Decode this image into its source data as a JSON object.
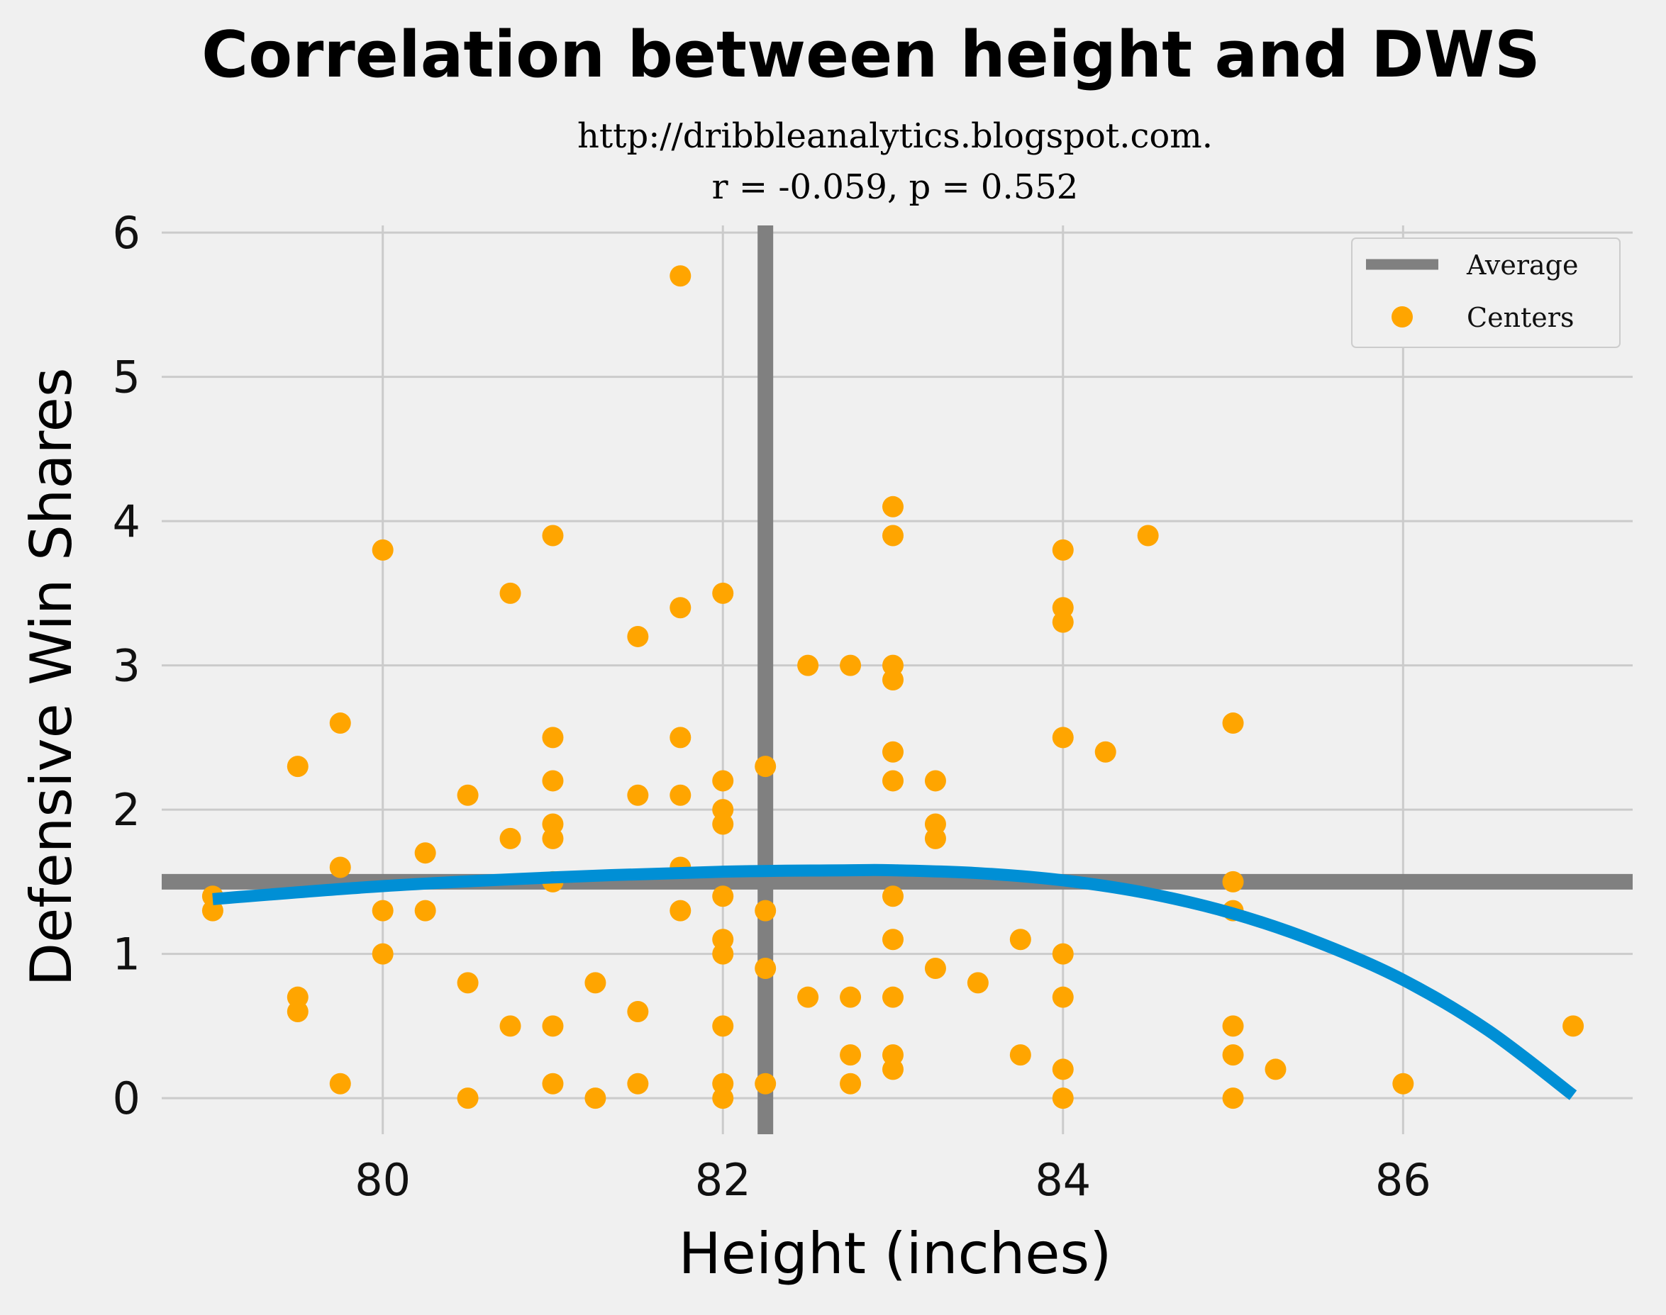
{
  "chart_data": {
    "type": "scatter",
    "title": "Correlation between height and DWS",
    "subtitle_lines": [
      "http://dribbleanalytics.blogspot.com.",
      "r = -0.059, p = 0.552"
    ],
    "xlabel": "Height (inches)",
    "ylabel": "Defensive Win Shares",
    "xlim": [
      78.7,
      87.35
    ],
    "ylim": [
      -0.25,
      6.05
    ],
    "xticks": [
      "80",
      "82",
      "84",
      "86"
    ],
    "yticks": [
      "0",
      "1",
      "2",
      "3",
      "4",
      "5",
      "6"
    ],
    "grid": true,
    "legend_position": "top-right",
    "average": {
      "name": "Average",
      "x": 82.25,
      "y": 1.5,
      "color": "#808080"
    },
    "series": [
      {
        "name": "Centers",
        "color": "#ffa500",
        "points": [
          [
            79,
            1.4
          ],
          [
            79,
            1.3
          ],
          [
            79.5,
            2.3
          ],
          [
            79.5,
            0.7
          ],
          [
            79.5,
            0.6
          ],
          [
            79.75,
            2.6
          ],
          [
            79.75,
            1.6
          ],
          [
            79.75,
            0.1
          ],
          [
            80,
            3.8
          ],
          [
            80,
            1.3
          ],
          [
            80,
            1.0
          ],
          [
            80.25,
            1.7
          ],
          [
            80.25,
            1.3
          ],
          [
            80.5,
            2.1
          ],
          [
            80.5,
            0.8
          ],
          [
            80.5,
            0.0
          ],
          [
            80.75,
            3.5
          ],
          [
            80.75,
            1.8
          ],
          [
            80.75,
            0.5
          ],
          [
            81,
            3.9
          ],
          [
            81,
            2.5
          ],
          [
            81,
            2.2
          ],
          [
            81,
            1.9
          ],
          [
            81,
            1.8
          ],
          [
            81,
            1.5
          ],
          [
            81,
            0.5
          ],
          [
            81,
            0.1
          ],
          [
            81.25,
            0.8
          ],
          [
            81.25,
            0.0
          ],
          [
            81.5,
            3.2
          ],
          [
            81.5,
            2.1
          ],
          [
            81.5,
            0.6
          ],
          [
            81.5,
            0.1
          ],
          [
            81.75,
            5.7
          ],
          [
            81.75,
            3.4
          ],
          [
            81.75,
            2.5
          ],
          [
            81.75,
            2.1
          ],
          [
            81.75,
            1.6
          ],
          [
            81.75,
            1.3
          ],
          [
            82,
            3.5
          ],
          [
            82,
            2.2
          ],
          [
            82,
            2.0
          ],
          [
            82,
            1.9
          ],
          [
            82,
            1.4
          ],
          [
            82,
            1.1
          ],
          [
            82,
            1.0
          ],
          [
            82,
            0.5
          ],
          [
            82,
            0.1
          ],
          [
            82,
            0.0
          ],
          [
            82.25,
            2.3
          ],
          [
            82.25,
            1.3
          ],
          [
            82.25,
            0.9
          ],
          [
            82.25,
            0.1
          ],
          [
            82.5,
            3.0
          ],
          [
            82.5,
            0.7
          ],
          [
            82.75,
            3.0
          ],
          [
            82.75,
            0.7
          ],
          [
            82.75,
            0.3
          ],
          [
            82.75,
            0.1
          ],
          [
            83,
            4.1
          ],
          [
            83,
            3.9
          ],
          [
            83,
            3.0
          ],
          [
            83,
            2.9
          ],
          [
            83,
            2.4
          ],
          [
            83,
            2.2
          ],
          [
            83,
            1.4
          ],
          [
            83,
            1.1
          ],
          [
            83,
            0.7
          ],
          [
            83,
            0.3
          ],
          [
            83,
            0.2
          ],
          [
            83.25,
            2.2
          ],
          [
            83.25,
            1.9
          ],
          [
            83.25,
            1.8
          ],
          [
            83.25,
            0.9
          ],
          [
            83.5,
            0.8
          ],
          [
            83.75,
            1.1
          ],
          [
            83.75,
            0.3
          ],
          [
            84,
            3.8
          ],
          [
            84,
            3.4
          ],
          [
            84,
            3.3
          ],
          [
            84,
            2.5
          ],
          [
            84,
            1.0
          ],
          [
            84,
            0.7
          ],
          [
            84,
            0.2
          ],
          [
            84,
            0.0
          ],
          [
            84.25,
            2.4
          ],
          [
            84.5,
            3.9
          ],
          [
            85,
            2.6
          ],
          [
            85,
            1.5
          ],
          [
            85,
            1.3
          ],
          [
            85,
            0.5
          ],
          [
            85,
            0.3
          ],
          [
            85,
            0.0
          ],
          [
            85.25,
            0.2
          ],
          [
            86,
            0.1
          ],
          [
            87,
            0.5
          ]
        ]
      }
    ],
    "fit_line": {
      "color": "#008fd5",
      "points": [
        [
          79,
          1.38
        ],
        [
          80,
          1.47
        ],
        [
          81,
          1.53
        ],
        [
          82,
          1.57
        ],
        [
          82.75,
          1.58
        ],
        [
          83,
          1.58
        ],
        [
          83.5,
          1.56
        ],
        [
          84,
          1.51
        ],
        [
          84.5,
          1.42
        ],
        [
          85,
          1.28
        ],
        [
          85.5,
          1.08
        ],
        [
          86,
          0.82
        ],
        [
          86.5,
          0.47
        ],
        [
          87,
          0.02
        ]
      ]
    }
  }
}
